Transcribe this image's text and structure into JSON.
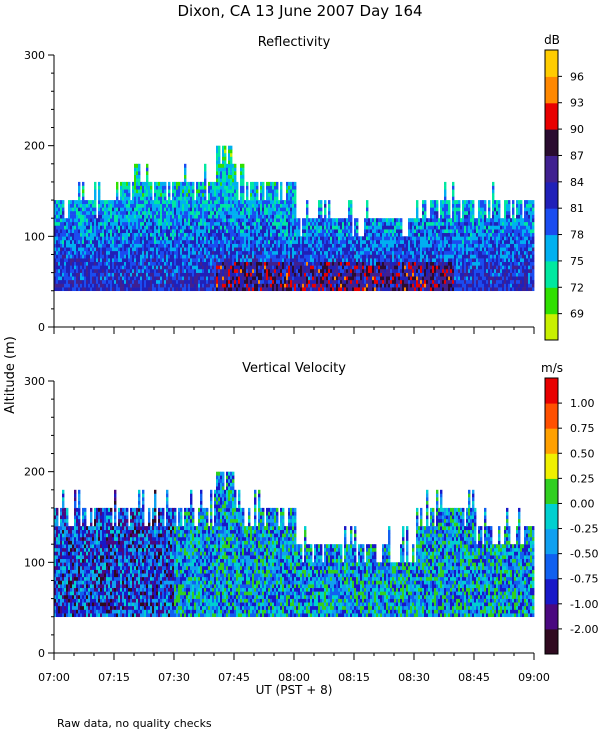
{
  "title": "Dixon, CA 13 June 2007  Day 164",
  "shared_ylabel": "Altitude (m)",
  "xlabel": "UT  (PST + 8)",
  "footnote": "Raw data, no quality checks",
  "chart_data": [
    {
      "type": "heatmap",
      "title": "Reflectivity",
      "x_ticks": [
        "07:00",
        "07:15",
        "07:30",
        "07:45",
        "08:00",
        "08:15",
        "08:30",
        "08:45",
        "09:00"
      ],
      "xlim": [
        "07:00",
        "09:00"
      ],
      "ylim": [
        0,
        300
      ],
      "y_ticks": [
        0,
        100,
        200,
        300
      ],
      "data_bottom_m": 40,
      "colorbar": {
        "unit": "dB",
        "labels": [
          "69",
          "72",
          "75",
          "78",
          "81",
          "84",
          "87",
          "90",
          "93",
          "96"
        ],
        "colors": [
          "#c8f000",
          "#30e000",
          "#00e8a0",
          "#00b0f0",
          "#1a4cf0",
          "#2020b8",
          "#402090",
          "#2a0c30",
          "#e80000",
          "#ff8800",
          "#ffcc00"
        ]
      },
      "data_description_top_m": [
        {
          "time": "07:00",
          "top": 140
        },
        {
          "time": "07:15",
          "top": 160
        },
        {
          "time": "07:30",
          "top": 160
        },
        {
          "time": "07:40",
          "top": 200
        },
        {
          "time": "07:45",
          "top": 160
        },
        {
          "time": "08:00",
          "top": 120
        },
        {
          "time": "08:15",
          "top": 120
        },
        {
          "time": "08:30",
          "top": 140
        },
        {
          "time": "08:45",
          "top": 140
        },
        {
          "time": "09:00",
          "top": 140
        }
      ]
    },
    {
      "type": "heatmap",
      "title": "Vertical Velocity",
      "x_ticks": [
        "07:00",
        "07:15",
        "07:30",
        "07:45",
        "08:00",
        "08:15",
        "08:30",
        "08:45",
        "09:00"
      ],
      "xlim": [
        "07:00",
        "09:00"
      ],
      "ylim": [
        0,
        300
      ],
      "y_ticks": [
        0,
        100,
        200,
        300
      ],
      "data_bottom_m": 40,
      "colorbar": {
        "unit": "m/s",
        "labels": [
          "-2.00",
          "-1.00",
          "-0.75",
          "-0.50",
          "-0.25",
          "0.00",
          "0.25",
          "0.50",
          "0.75",
          "1.00"
        ],
        "colors": [
          "#300a20",
          "#4a0880",
          "#1818c8",
          "#1060f0",
          "#10a0f0",
          "#00d0d0",
          "#30d020",
          "#f0f000",
          "#ffa000",
          "#ff5000",
          "#e80000"
        ]
      },
      "data_description_top_m": [
        {
          "time": "07:00",
          "top": 160
        },
        {
          "time": "07:15",
          "top": 160
        },
        {
          "time": "07:30",
          "top": 160
        },
        {
          "time": "07:40",
          "top": 200
        },
        {
          "time": "07:45",
          "top": 160
        },
        {
          "time": "08:00",
          "top": 120
        },
        {
          "time": "08:15",
          "top": 120
        },
        {
          "time": "08:30",
          "top": 160
        },
        {
          "time": "08:45",
          "top": 140
        },
        {
          "time": "09:00",
          "top": 140
        }
      ]
    }
  ]
}
